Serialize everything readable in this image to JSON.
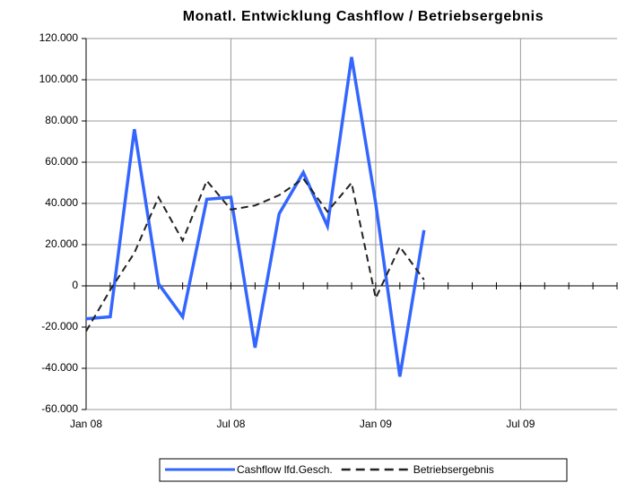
{
  "chart_data": {
    "type": "line",
    "title": "Monatl. Entwicklung Cashflow / Betriebsergebnis",
    "categories": [
      "Jan 08",
      null,
      null,
      null,
      null,
      null,
      "Jul 08",
      null,
      null,
      null,
      null,
      null,
      "Jan 09",
      null,
      null,
      null,
      null,
      null,
      "Jul 09",
      null,
      null,
      null,
      null
    ],
    "series": [
      {
        "name": "Cashflow lfd.Gesch.",
        "color": "#3366ff",
        "dash": "solid",
        "values": [
          -16000,
          -15000,
          76000,
          1000,
          -15000,
          42000,
          43000,
          -30000,
          35000,
          55000,
          29000,
          111000,
          40000,
          -44000,
          27000,
          null,
          null,
          null,
          null,
          null,
          null,
          null,
          null
        ]
      },
      {
        "name": "Betriebsergebnis",
        "color": "#222222",
        "dash": "dashed",
        "values": [
          -22000,
          -2000,
          16000,
          43000,
          22000,
          51000,
          37000,
          39000,
          44000,
          52000,
          36000,
          50000,
          -6000,
          19000,
          3000,
          null,
          null,
          null,
          null,
          null,
          null,
          null,
          null
        ]
      }
    ],
    "ylim": [
      -60000,
      120000
    ],
    "yticks": [
      {
        "value": -60000,
        "label": "-60.000"
      },
      {
        "value": -40000,
        "label": "-40.000"
      },
      {
        "value": -20000,
        "label": "-20.000"
      },
      0,
      {
        "value": 20000,
        "label": "20.000"
      },
      {
        "value": 40000,
        "label": "40.000"
      },
      {
        "value": 60000,
        "label": "60.000"
      },
      {
        "value": 80000,
        "label": "80.000"
      },
      {
        "value": 100000,
        "label": "100.000"
      },
      {
        "value": 120000,
        "label": "120.000"
      }
    ],
    "grid": true
  }
}
